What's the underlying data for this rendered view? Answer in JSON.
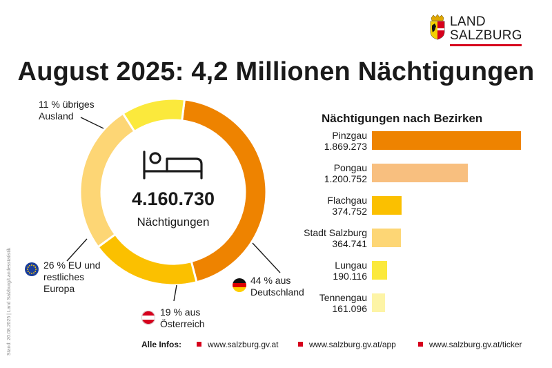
{
  "logo": {
    "line1": "LAND",
    "line2": "SALZBURG"
  },
  "title": "August 2025: 4,2 Millionen Nächtigungen",
  "chart_data": [
    {
      "type": "pie",
      "subtype": "donut",
      "center_total": "4.160.730",
      "center_label": "Nächtigungen",
      "slices": [
        {
          "label_lines": [
            "44 % aus",
            "Deutschland"
          ],
          "value": 44,
          "color": "#ee8300"
        },
        {
          "label_lines": [
            "19 % aus",
            "Österreich"
          ],
          "value": 19,
          "color": "#fbc000"
        },
        {
          "label_lines": [
            "26 % EU und",
            "restliches",
            "Europa"
          ],
          "value": 26,
          "color": "#fdd675"
        },
        {
          "label_lines": [
            "11 % übriges",
            "Ausland"
          ],
          "value": 11,
          "color": "#fbe93c"
        }
      ]
    },
    {
      "type": "bar",
      "orientation": "horizontal",
      "title": "Nächtigungen nach Bezirken",
      "categories": [
        "Pinzgau",
        "Pongau",
        "Flachgau",
        "Stadt Salzburg",
        "Lungau",
        "Tennengau"
      ],
      "value_labels": [
        "1.869.273",
        "1.200.752",
        "374.752",
        "364.741",
        "190.116",
        "161.096"
      ],
      "values": [
        1869273,
        1200752,
        374752,
        364741,
        190116,
        161096
      ],
      "colors": [
        "#ee8300",
        "#f8bf7f",
        "#fbc000",
        "#fdd675",
        "#fbe93c",
        "#fdf4a6"
      ],
      "xlim": [
        0,
        1869273
      ]
    }
  ],
  "footer": {
    "label": "Alle Infos:",
    "links": [
      "www.salzburg.gv.at",
      "www.salzburg.gv.at/app",
      "www.salzburg.gv.at/ticker"
    ]
  },
  "source_note": "Stand: 20.08.2025 | Land Salzburg/Landesstatistik",
  "icons": [
    "bed-icon",
    "eu-flag-icon",
    "austria-flag-icon",
    "germany-flag-icon",
    "salzburg-crest-icon"
  ],
  "colors": {
    "accent": "#d6001c",
    "text": "#1a1a1a"
  }
}
